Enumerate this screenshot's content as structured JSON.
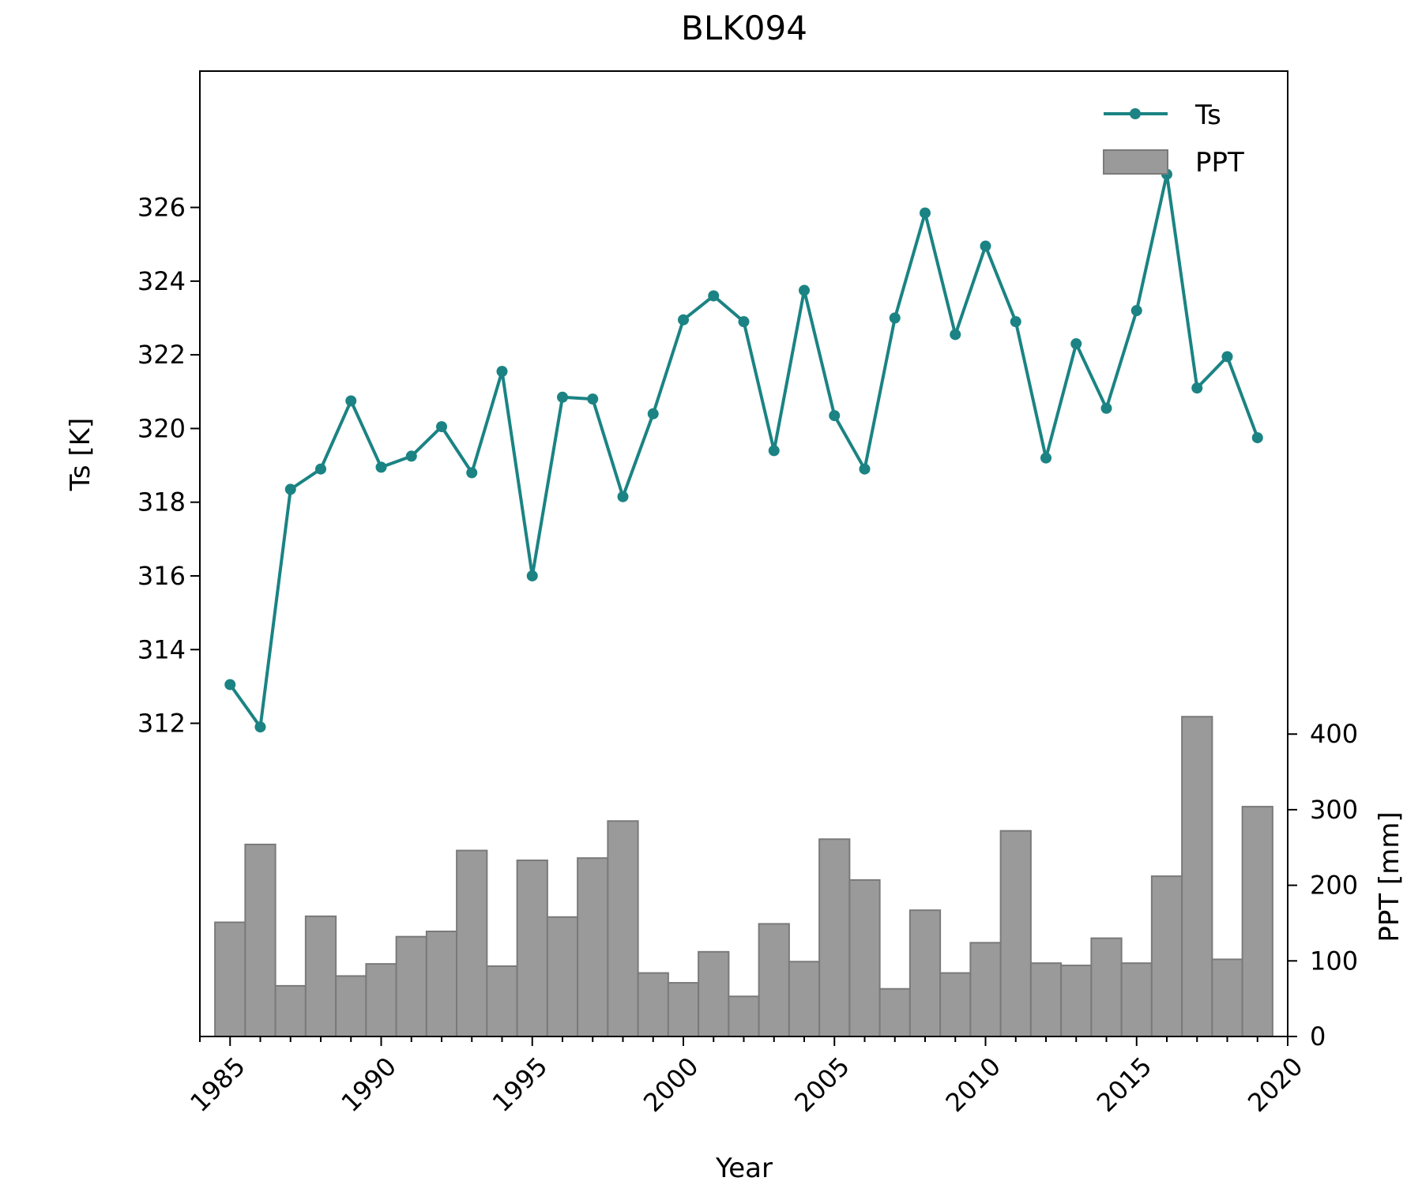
{
  "chart_data": {
    "type": "line+bar",
    "title": "BLK094",
    "xlabel": "Year",
    "xlim": [
      1984,
      2020
    ],
    "x_ticks": [
      1985,
      1990,
      1995,
      2000,
      2005,
      2010,
      2015,
      2020
    ],
    "x_tick_labels": [
      "1985",
      "1990",
      "1995",
      "2000",
      "2005",
      "2010",
      "2015",
      "2020"
    ],
    "left_axis": {
      "label": "Ts [K]",
      "lim": [
        303.5,
        329.7
      ],
      "ticks": [
        312,
        314,
        316,
        318,
        320,
        322,
        324,
        326
      ],
      "tick_labels": [
        "312",
        "314",
        "316",
        "318",
        "320",
        "322",
        "324",
        "326"
      ]
    },
    "right_axis": {
      "label": "PPT [mm]",
      "lim": [
        0,
        1277
      ],
      "ticks": [
        0,
        100,
        200,
        300,
        400
      ],
      "tick_labels": [
        "0",
        "100",
        "200",
        "300",
        "400"
      ]
    },
    "legend": {
      "placement": "upper right",
      "entries": [
        {
          "label": "Ts",
          "kind": "line"
        },
        {
          "label": "PPT",
          "kind": "bar"
        }
      ]
    },
    "grid": false,
    "series": [
      {
        "name": "Ts",
        "type": "line",
        "axis": "left",
        "color": "#1b8383",
        "x": [
          1985,
          1986,
          1987,
          1988,
          1989,
          1990,
          1991,
          1992,
          1993,
          1994,
          1995,
          1996,
          1997,
          1998,
          1999,
          2000,
          2001,
          2002,
          2003,
          2004,
          2005,
          2006,
          2007,
          2008,
          2009,
          2010,
          2011,
          2012,
          2013,
          2014,
          2015,
          2016,
          2017,
          2018,
          2019
        ],
        "y": [
          313.05,
          311.9,
          318.35,
          318.9,
          320.75,
          318.95,
          319.25,
          320.05,
          318.8,
          321.55,
          316.0,
          320.85,
          320.8,
          318.15,
          320.4,
          322.95,
          323.6,
          322.9,
          319.4,
          323.75,
          320.35,
          318.9,
          323.0,
          325.85,
          322.55,
          324.95,
          322.9,
          319.2,
          322.3,
          320.55,
          323.2,
          326.9,
          321.1,
          321.95,
          319.75
        ]
      },
      {
        "name": "PPT",
        "type": "bar",
        "axis": "right",
        "color": "#9a9a9a",
        "edge_color": "#7a7a7a",
        "x": [
          1985,
          1986,
          1987,
          1988,
          1989,
          1990,
          1991,
          1992,
          1993,
          1994,
          1995,
          1996,
          1997,
          1998,
          1999,
          2000,
          2001,
          2002,
          2003,
          2004,
          2005,
          2006,
          2007,
          2008,
          2009,
          2010,
          2011,
          2012,
          2013,
          2014,
          2015,
          2016,
          2017,
          2018,
          2019
        ],
        "values": [
          151,
          254,
          67,
          159,
          80,
          96,
          132,
          139,
          246,
          93,
          233,
          158,
          236,
          285,
          84,
          71,
          112,
          53,
          149,
          99,
          261,
          207,
          63,
          167,
          84,
          124,
          272,
          97,
          94,
          130,
          97,
          212,
          423,
          102,
          304
        ]
      }
    ]
  }
}
